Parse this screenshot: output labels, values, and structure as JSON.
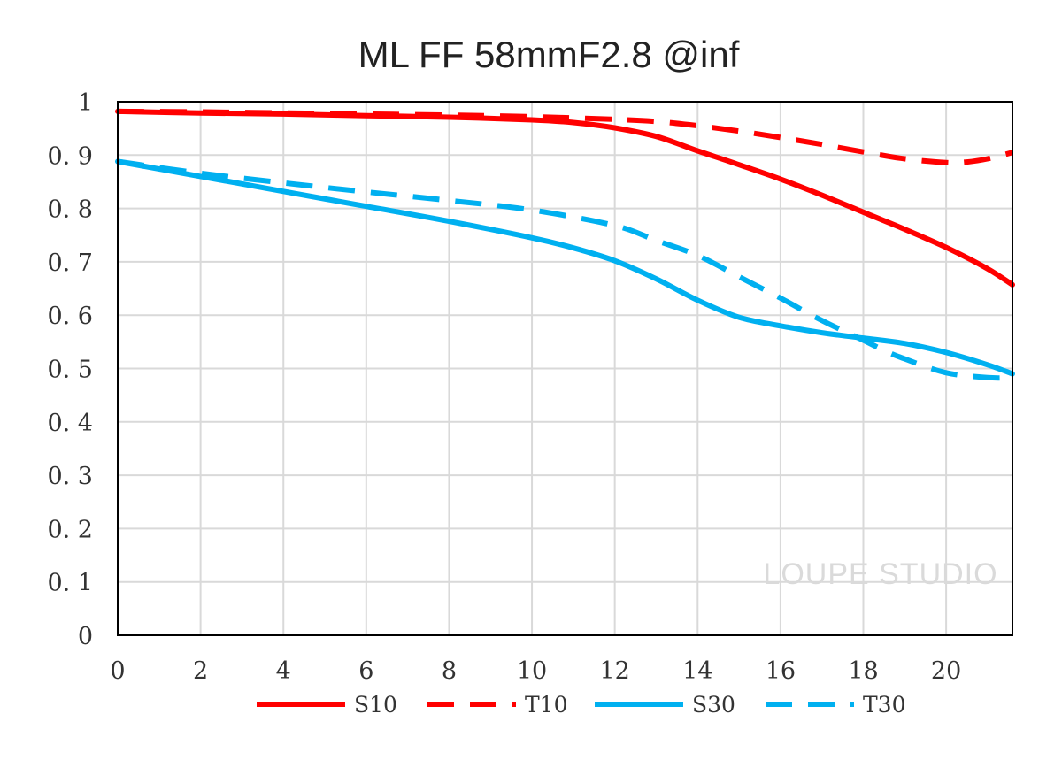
{
  "chart_data": {
    "type": "line",
    "title": "ML FF 58mmF2.8 @inf",
    "xlabel": "",
    "ylabel": "",
    "xlim": [
      0,
      21.6
    ],
    "ylim": [
      0,
      1
    ],
    "x_ticks": [
      0,
      2,
      4,
      6,
      8,
      10,
      12,
      14,
      16,
      18,
      20
    ],
    "y_ticks": [
      0,
      0.1,
      0.2,
      0.3,
      0.4,
      0.5,
      0.6,
      0.7,
      0.8,
      0.9,
      1
    ],
    "y_tick_labels": [
      "0",
      "0. 1",
      "0. 2",
      "0. 3",
      "0. 4",
      "0. 5",
      "0. 6",
      "0. 7",
      "0. 8",
      "0. 9",
      "1"
    ],
    "grid": true,
    "legend_position": "bottom",
    "series": [
      {
        "name": "S10",
        "color": "#ff0000",
        "dash": "solid",
        "x": [
          0,
          2,
          4,
          6,
          8,
          10,
          11,
          12,
          13,
          14,
          15,
          16,
          17,
          18,
          19,
          20,
          21,
          21.6
        ],
        "y": [
          0.982,
          0.979,
          0.977,
          0.974,
          0.971,
          0.966,
          0.961,
          0.951,
          0.935,
          0.908,
          0.882,
          0.855,
          0.825,
          0.793,
          0.761,
          0.727,
          0.687,
          0.657
        ]
      },
      {
        "name": "T10",
        "color": "#ff0000",
        "dash": "dashed",
        "x": [
          0,
          2,
          4,
          6,
          8,
          10,
          12,
          13,
          14,
          15,
          16,
          17,
          18,
          19,
          20,
          20.5,
          21,
          21.6
        ],
        "y": [
          0.982,
          0.981,
          0.979,
          0.977,
          0.975,
          0.972,
          0.967,
          0.963,
          0.955,
          0.945,
          0.933,
          0.92,
          0.906,
          0.893,
          0.886,
          0.887,
          0.893,
          0.905
        ]
      },
      {
        "name": "S30",
        "color": "#00b0f0",
        "dash": "solid",
        "x": [
          0,
          2,
          4,
          6,
          8,
          10,
          11,
          12,
          13,
          14,
          15,
          16,
          17,
          18,
          19,
          20,
          21,
          21.6
        ],
        "y": [
          0.888,
          0.86,
          0.832,
          0.804,
          0.776,
          0.745,
          0.726,
          0.702,
          0.668,
          0.628,
          0.596,
          0.58,
          0.567,
          0.557,
          0.547,
          0.53,
          0.507,
          0.49
        ]
      },
      {
        "name": "T30",
        "color": "#00b0f0",
        "dash": "dashed",
        "x": [
          0,
          2,
          4,
          6,
          8,
          10,
          12,
          13,
          14,
          15,
          16,
          17,
          18,
          18.5,
          19,
          20,
          21,
          21.6
        ],
        "y": [
          0.888,
          0.866,
          0.848,
          0.831,
          0.815,
          0.797,
          0.768,
          0.74,
          0.712,
          0.672,
          0.632,
          0.59,
          0.553,
          0.534,
          0.518,
          0.492,
          0.483,
          0.483
        ]
      }
    ],
    "watermark": "LOUPE STUDIO"
  }
}
